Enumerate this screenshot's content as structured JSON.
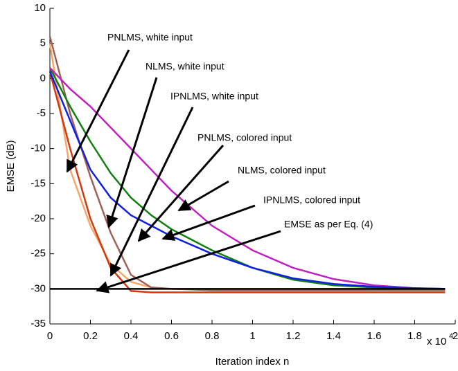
{
  "chart_data": {
    "type": "line",
    "x_label": "Iteration index n",
    "y_label": "EMSE (dB)",
    "x_multiplier": "x 10",
    "x_multiplier_exponent": "4",
    "x": [
      0,
      0.1,
      0.2,
      0.3,
      0.4,
      0.5,
      0.6,
      0.8,
      1.0,
      1.2,
      1.4,
      1.6,
      1.8,
      1.95
    ],
    "series": [
      {
        "name": "PNLMS, white input",
        "color": "#f5a86a",
        "values": [
          5,
          -13,
          -21,
          -26.5,
          -29,
          -29.8,
          -30,
          -30,
          -30,
          -30,
          -30,
          -30,
          -30,
          -30
        ]
      },
      {
        "name": "NLMS, white input",
        "color": "#a0605a",
        "values": [
          6,
          -5,
          -14,
          -22,
          -28,
          -29.8,
          -30,
          -30.2,
          -30.2,
          -30.2,
          -30.2,
          -30.2,
          -30.2,
          -30.2
        ]
      },
      {
        "name": "IPNLMS, white input",
        "color": "#d03a10",
        "values": [
          1,
          -10,
          -20,
          -27,
          -30.3,
          -30.5,
          -30.5,
          -30.5,
          -30.5,
          -30.5,
          -30.5,
          -30.5,
          -30.5,
          -30.5
        ]
      },
      {
        "name": "PNLMS, colored input",
        "color": "#108010",
        "values": [
          1.5,
          -4,
          -9,
          -13.5,
          -17,
          -19.5,
          -21.5,
          -24.5,
          -27,
          -28.7,
          -29.5,
          -29.8,
          -30,
          -30
        ]
      },
      {
        "name": "NLMS, colored input",
        "color": "#c020c0",
        "values": [
          1.5,
          -1.5,
          -4,
          -7,
          -10,
          -13,
          -16,
          -21,
          -24.5,
          -27,
          -28.6,
          -29.5,
          -29.9,
          -30
        ]
      },
      {
        "name": "IPNLMS, colored input",
        "color": "#1020e0",
        "values": [
          1,
          -6,
          -13,
          -17,
          -19.5,
          -21,
          -22.5,
          -25,
          -27,
          -28.5,
          -29.3,
          -29.7,
          -29.9,
          -30
        ]
      },
      {
        "name": "EMSE as per Eq. (4)",
        "color": "#000000",
        "values": [
          -30,
          -30,
          -30,
          -30,
          -30,
          -30,
          -30,
          -30,
          -30,
          -30,
          -30,
          -30,
          -30,
          -30
        ]
      }
    ],
    "xlim": [
      0,
      2
    ],
    "xticks": [
      0,
      0.2,
      0.4,
      0.6,
      0.8,
      1,
      1.2,
      1.4,
      1.6,
      1.8,
      2
    ],
    "ylim": [
      -35,
      10
    ],
    "yticks": [
      -35,
      -30,
      -25,
      -20,
      -15,
      -10,
      -5,
      0,
      5,
      10
    ]
  }
}
